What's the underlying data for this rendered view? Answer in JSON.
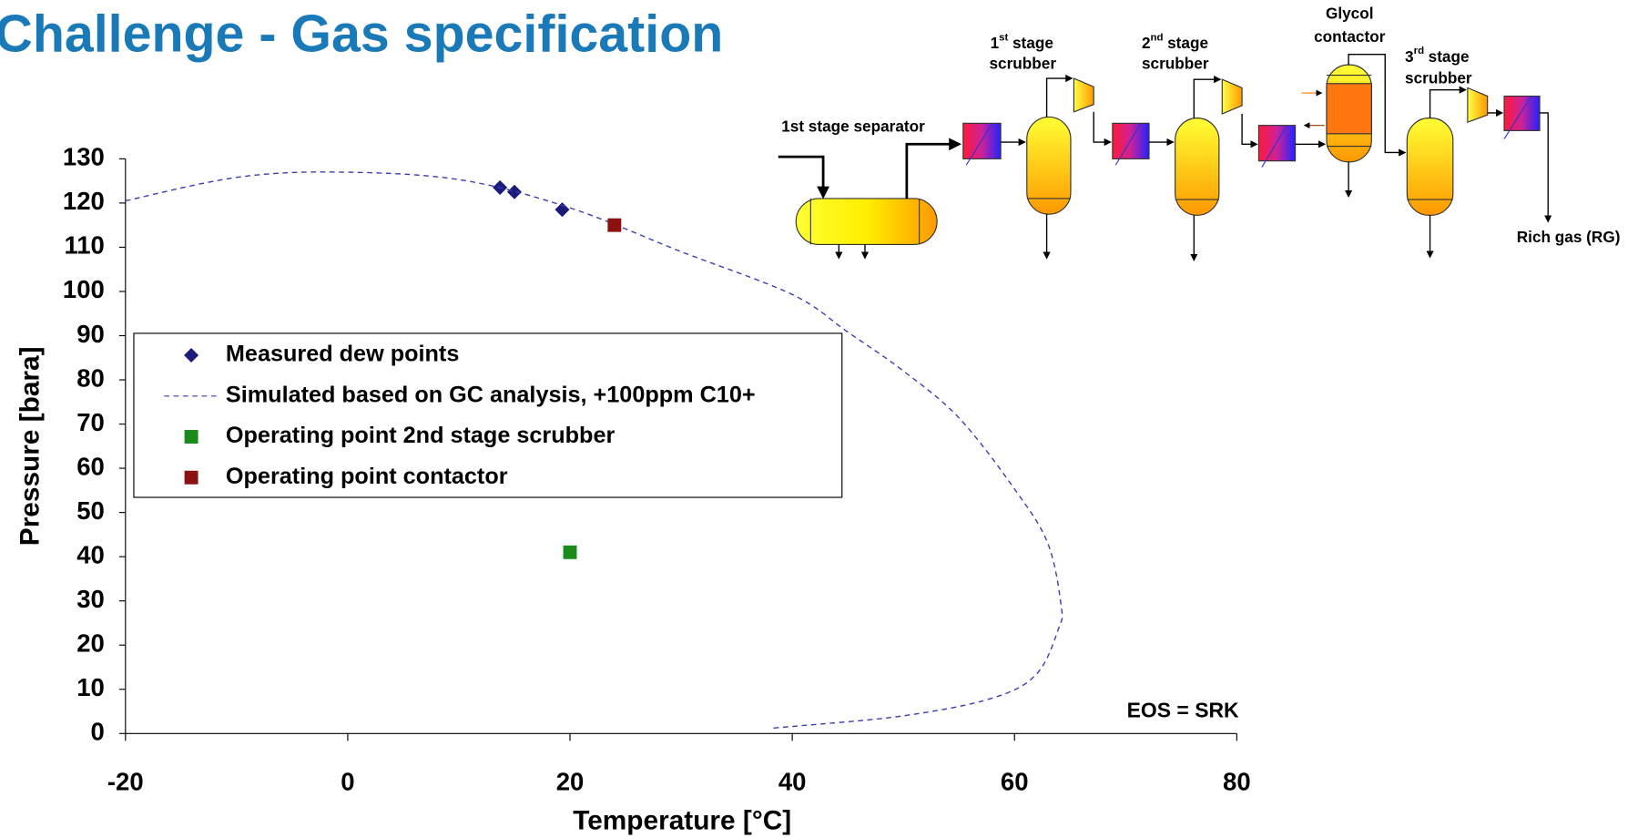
{
  "title": "Challenge - Gas specification",
  "chart_data": {
    "type": "scatter",
    "x_label": "Temperature [°C]",
    "y_label": "Pressure [bara]",
    "xlim": [
      -20,
      80
    ],
    "ylim": [
      0,
      130
    ],
    "xticks": [
      -20,
      0,
      20,
      40,
      60,
      80
    ],
    "yticks": [
      0,
      10,
      20,
      30,
      40,
      50,
      60,
      70,
      80,
      90,
      100,
      110,
      120,
      130
    ],
    "annotation": "EOS = SRK",
    "series": [
      {
        "name": "Measured dew points",
        "color": "#1b1b7a",
        "marker": "diamond",
        "x": [
          13.7,
          15,
          19.3
        ],
        "y": [
          123.5,
          122.5,
          118.5
        ]
      },
      {
        "name": "Simulated based on GC analysis, +100ppm C10+",
        "color": "#3a3ab0",
        "marker": "dashed-line",
        "x": [
          -20,
          -10,
          -1,
          10,
          20,
          30,
          40,
          45,
          50,
          55,
          60,
          63,
          64.2,
          64,
          62,
          58,
          50,
          40,
          38
        ],
        "y": [
          120.5,
          125.8,
          127,
          125.3,
          118.9,
          109,
          99.3,
          90.8,
          82,
          71.4,
          55.3,
          43,
          28.8,
          24,
          13.5,
          8,
          4,
          1.6,
          1.2
        ]
      },
      {
        "name": "Operating point 2nd stage scrubber",
        "color": "#1a8a1a",
        "marker": "square",
        "x": [
          20
        ],
        "y": [
          41
        ]
      },
      {
        "name": "Operating point contactor",
        "color": "#8b1010",
        "marker": "square",
        "x": [
          24
        ],
        "y": [
          115
        ]
      }
    ]
  },
  "diagram": {
    "separator": "1st stage separator",
    "scrubber1": {
      "num": "1",
      "sup": "st",
      "rest": "stage",
      "line2": "scrubber"
    },
    "scrubber2": {
      "num": "2",
      "sup": "nd",
      "rest": "stage",
      "line2": "scrubber"
    },
    "scrubber3": {
      "num": "3",
      "sup": "rd",
      "rest": "stage",
      "line2": "scrubber"
    },
    "contactor": {
      "line1": "Glycol",
      "line2": "contactor"
    },
    "outlet": "Rich gas (RG)"
  }
}
